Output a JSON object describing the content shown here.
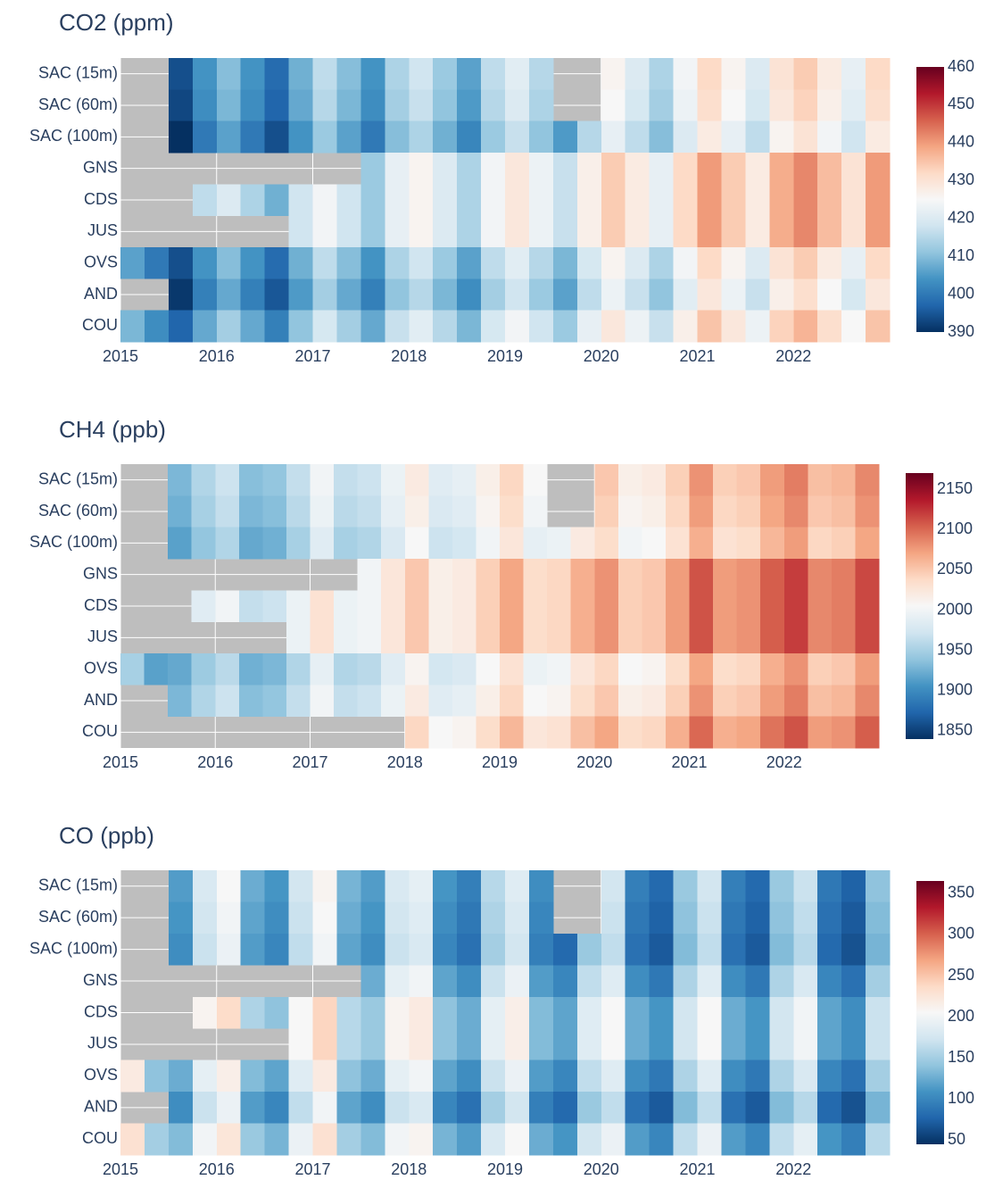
{
  "chart_data": [
    {
      "type": "heatmap",
      "title": "CO2 (ppm)",
      "y": [
        "SAC (15m)",
        "SAC (60m)",
        "SAC (100m)",
        "GNS",
        "CDS",
        "JUS",
        "OVS",
        "AND",
        "COU"
      ],
      "x": [
        2015,
        2015.25,
        2015.5,
        2015.75,
        2016,
        2016.25,
        2016.5,
        2016.75,
        2017,
        2017.25,
        2017.5,
        2017.75,
        2018,
        2018.25,
        2018.5,
        2018.75,
        2019,
        2019.25,
        2019.5,
        2019.75,
        2020,
        2020.25,
        2020.5,
        2020.75,
        2021,
        2021.25,
        2021.5,
        2021.75,
        2022,
        2022.25,
        2022.5,
        2022.75
      ],
      "xlim": [
        2015,
        2023
      ],
      "xticks": [
        2015,
        2016,
        2017,
        2018,
        2019,
        2020,
        2021,
        2022
      ],
      "zlim": [
        390,
        460
      ],
      "colorbar_ticks": [
        390,
        400,
        410,
        420,
        430,
        440,
        450,
        460
      ],
      "colorscale": [
        "#053061",
        "#2166ac",
        "#4393c3",
        "#92c5de",
        "#d1e5f0",
        "#f7f7f7",
        "#fddbc7",
        "#f4a582",
        "#d6604d",
        "#b2182b",
        "#67001f"
      ],
      "missing_color": "#bebebe",
      "grid": true,
      "z": [
        [
          null,
          null,
          394,
          404,
          410,
          404,
          398,
          408,
          416,
          410,
          404,
          414,
          418,
          412,
          406,
          416,
          421,
          415,
          null,
          null,
          426,
          420,
          414,
          424,
          432,
          426,
          420,
          430,
          434,
          428,
          422,
          432
        ],
        [
          null,
          null,
          393,
          403,
          409,
          403,
          397,
          407,
          415,
          409,
          403,
          413,
          417,
          411,
          405,
          415,
          420,
          414,
          null,
          null,
          425,
          419,
          413,
          423,
          431,
          425,
          419,
          429,
          433,
          427,
          421,
          431
        ],
        [
          null,
          null,
          390,
          400,
          406,
          400,
          394,
          404,
          412,
          406,
          400,
          410,
          414,
          408,
          402,
          412,
          417,
          411,
          405,
          415,
          422,
          416,
          410,
          420,
          428,
          422,
          416,
          426,
          430,
          424,
          418,
          428
        ],
        [
          null,
          null,
          null,
          null,
          null,
          null,
          null,
          null,
          null,
          null,
          412,
          422,
          426,
          420,
          414,
          424,
          429,
          423,
          417,
          427,
          434,
          428,
          422,
          432,
          440,
          434,
          428,
          438,
          442,
          436,
          430,
          440
        ],
        [
          null,
          null,
          null,
          416,
          420,
          414,
          408,
          418,
          424,
          418,
          412,
          422,
          426,
          420,
          414,
          424,
          429,
          423,
          417,
          427,
          434,
          428,
          422,
          432,
          440,
          434,
          428,
          438,
          442,
          436,
          430,
          440
        ],
        [
          null,
          null,
          null,
          null,
          null,
          null,
          null,
          418,
          424,
          418,
          412,
          422,
          426,
          420,
          414,
          424,
          429,
          423,
          417,
          427,
          434,
          428,
          422,
          432,
          440,
          434,
          428,
          438,
          442,
          436,
          430,
          440
        ],
        [
          406,
          400,
          394,
          404,
          410,
          404,
          398,
          408,
          416,
          410,
          404,
          414,
          418,
          412,
          406,
          416,
          421,
          415,
          409,
          419,
          426,
          420,
          414,
          424,
          432,
          426,
          420,
          430,
          434,
          428,
          422,
          432
        ],
        [
          null,
          null,
          391,
          401,
          407,
          401,
          395,
          405,
          413,
          407,
          401,
          411,
          415,
          409,
          403,
          413,
          418,
          412,
          406,
          416,
          423,
          417,
          411,
          421,
          429,
          423,
          417,
          427,
          431,
          425,
          419,
          429
        ],
        [
          409,
          403,
          397,
          407,
          413,
          407,
          401,
          411,
          419,
          413,
          407,
          417,
          421,
          415,
          409,
          419,
          424,
          418,
          412,
          422,
          429,
          423,
          417,
          427,
          435,
          429,
          423,
          433,
          437,
          431,
          425,
          435
        ]
      ]
    },
    {
      "type": "heatmap",
      "title": "CH4 (ppb)",
      "y": [
        "SAC (15m)",
        "SAC (60m)",
        "SAC (100m)",
        "GNS",
        "CDS",
        "JUS",
        "OVS",
        "AND",
        "COU"
      ],
      "x": [
        2015,
        2015.25,
        2015.5,
        2015.75,
        2016,
        2016.25,
        2016.5,
        2016.75,
        2017,
        2017.25,
        2017.5,
        2017.75,
        2018,
        2018.25,
        2018.5,
        2018.75,
        2019,
        2019.25,
        2019.5,
        2019.75,
        2020,
        2020.25,
        2020.5,
        2020.75,
        2021,
        2021.25,
        2021.5,
        2021.75,
        2022,
        2022.25,
        2022.5,
        2022.75
      ],
      "xlim": [
        2015,
        2023
      ],
      "xticks": [
        2015,
        2016,
        2017,
        2018,
        2019,
        2020,
        2021,
        2022
      ],
      "zlim": [
        1840,
        2170
      ],
      "colorbar_ticks": [
        1850,
        1900,
        1950,
        2000,
        2050,
        2100,
        2150
      ],
      "colorscale": [
        "#053061",
        "#2166ac",
        "#4393c3",
        "#92c5de",
        "#d1e5f0",
        "#f7f7f7",
        "#fddbc7",
        "#f4a582",
        "#d6604d",
        "#b2182b",
        "#67001f"
      ],
      "missing_color": "#bebebe",
      "grid": true,
      "z": [
        [
          null,
          null,
          1930,
          1955,
          1970,
          1935,
          1940,
          1965,
          2000,
          1965,
          1970,
          1995,
          2020,
          1985,
          1990,
          2015,
          2040,
          2005,
          null,
          null,
          2050,
          2015,
          2020,
          2045,
          2080,
          2045,
          2050,
          2075,
          2090,
          2055,
          2060,
          2085
        ],
        [
          null,
          null,
          1925,
          1950,
          1965,
          1930,
          1935,
          1960,
          1995,
          1960,
          1965,
          1990,
          2015,
          1980,
          1985,
          2010,
          2035,
          2000,
          null,
          null,
          2045,
          2010,
          2015,
          2040,
          2075,
          2040,
          2045,
          2070,
          2085,
          2050,
          2055,
          2080
        ],
        [
          null,
          null,
          1915,
          1940,
          1955,
          1920,
          1925,
          1950,
          1985,
          1950,
          1955,
          1980,
          2005,
          1970,
          1975,
          2000,
          2025,
          1990,
          1995,
          2020,
          2035,
          2000,
          2005,
          2030,
          2065,
          2030,
          2035,
          2060,
          2075,
          2040,
          2045,
          2070
        ],
        [
          null,
          null,
          null,
          null,
          null,
          null,
          null,
          null,
          null,
          null,
          2000,
          2025,
          2050,
          2015,
          2020,
          2045,
          2070,
          2035,
          2040,
          2065,
          2080,
          2045,
          2050,
          2075,
          2110,
          2075,
          2080,
          2105,
          2120,
          2085,
          2090,
          2115
        ],
        [
          null,
          null,
          null,
          1985,
          2000,
          1965,
          1970,
          1995,
          2030,
          1995,
          2000,
          2025,
          2050,
          2015,
          2020,
          2045,
          2070,
          2035,
          2040,
          2065,
          2080,
          2045,
          2050,
          2075,
          2110,
          2075,
          2080,
          2105,
          2120,
          2085,
          2090,
          2115
        ],
        [
          null,
          null,
          null,
          null,
          null,
          null,
          null,
          1995,
          2030,
          1995,
          2000,
          2025,
          2050,
          2015,
          2020,
          2045,
          2070,
          2035,
          2040,
          2065,
          2080,
          2045,
          2050,
          2075,
          2110,
          2075,
          2080,
          2105,
          2120,
          2085,
          2090,
          2115
        ],
        [
          1950,
          1915,
          1920,
          1945,
          1960,
          1925,
          1930,
          1955,
          1990,
          1955,
          1960,
          1985,
          2010,
          1975,
          1980,
          2005,
          2030,
          1995,
          2000,
          2025,
          2040,
          2005,
          2010,
          2035,
          2070,
          2035,
          2040,
          2065,
          2080,
          2045,
          2050,
          2075
        ],
        [
          null,
          null,
          1930,
          1955,
          1970,
          1935,
          1940,
          1965,
          2000,
          1965,
          1970,
          1995,
          2020,
          1985,
          1990,
          2015,
          2040,
          2005,
          2010,
          2035,
          2050,
          2015,
          2020,
          2045,
          2080,
          2045,
          2050,
          2075,
          2090,
          2055,
          2060,
          2085
        ],
        [
          null,
          null,
          null,
          null,
          null,
          null,
          null,
          null,
          null,
          null,
          null,
          null,
          2040,
          2005,
          2010,
          2035,
          2060,
          2025,
          2030,
          2055,
          2070,
          2035,
          2040,
          2065,
          2100,
          2065,
          2070,
          2095,
          2110,
          2075,
          2080,
          2105
        ]
      ]
    },
    {
      "type": "heatmap",
      "title": "CO (ppb)",
      "y": [
        "SAC (15m)",
        "SAC (60m)",
        "SAC (100m)",
        "GNS",
        "CDS",
        "JUS",
        "OVS",
        "AND",
        "COU"
      ],
      "x": [
        2015,
        2015.25,
        2015.5,
        2015.75,
        2016,
        2016.25,
        2016.5,
        2016.75,
        2017,
        2017.25,
        2017.5,
        2017.75,
        2018,
        2018.25,
        2018.5,
        2018.75,
        2019,
        2019.25,
        2019.5,
        2019.75,
        2020,
        2020.25,
        2020.5,
        2020.75,
        2021,
        2021.25,
        2021.5,
        2021.75,
        2022,
        2022.25,
        2022.5,
        2022.75
      ],
      "xlim": [
        2015,
        2023
      ],
      "xticks": [
        2015,
        2016,
        2017,
        2018,
        2019,
        2020,
        2021,
        2022
      ],
      "zlim": [
        45,
        365
      ],
      "colorbar_ticks": [
        50,
        100,
        150,
        200,
        250,
        300,
        350
      ],
      "colorscale": [
        "#053061",
        "#2166ac",
        "#4393c3",
        "#92c5de",
        "#d1e5f0",
        "#f7f7f7",
        "#fddbc7",
        "#f4a582",
        "#d6604d",
        "#b2182b",
        "#67001f"
      ],
      "missing_color": "#bebebe",
      "grid": true,
      "z": [
        [
          null,
          null,
          115,
          180,
          205,
          125,
          110,
          175,
          210,
          130,
          115,
          180,
          190,
          110,
          95,
          160,
          185,
          105,
          null,
          null,
          175,
          95,
          80,
          145,
          175,
          95,
          80,
          145,
          170,
          90,
          75,
          140
        ],
        [
          null,
          null,
          110,
          175,
          200,
          120,
          105,
          170,
          205,
          125,
          110,
          175,
          185,
          105,
          90,
          155,
          180,
          100,
          null,
          null,
          170,
          90,
          75,
          140,
          170,
          90,
          75,
          140,
          165,
          85,
          70,
          135
        ],
        [
          null,
          null,
          105,
          170,
          195,
          115,
          100,
          165,
          200,
          120,
          105,
          170,
          180,
          100,
          85,
          150,
          175,
          95,
          80,
          145,
          165,
          85,
          70,
          135,
          165,
          85,
          70,
          135,
          160,
          80,
          65,
          130
        ],
        [
          null,
          null,
          null,
          null,
          null,
          null,
          null,
          null,
          null,
          null,
          125,
          190,
          200,
          120,
          105,
          170,
          195,
          115,
          100,
          165,
          185,
          105,
          90,
          155,
          185,
          105,
          90,
          155,
          180,
          100,
          85,
          150
        ],
        [
          null,
          null,
          null,
          210,
          235,
          155,
          140,
          205,
          240,
          160,
          145,
          210,
          220,
          140,
          125,
          190,
          215,
          135,
          120,
          185,
          205,
          125,
          110,
          175,
          205,
          125,
          110,
          175,
          200,
          120,
          105,
          170
        ],
        [
          null,
          null,
          null,
          null,
          null,
          null,
          null,
          205,
          240,
          160,
          145,
          210,
          220,
          140,
          125,
          190,
          215,
          135,
          120,
          185,
          205,
          125,
          110,
          175,
          205,
          125,
          110,
          175,
          200,
          120,
          105,
          170
        ],
        [
          220,
          140,
          125,
          190,
          215,
          135,
          120,
          185,
          220,
          140,
          125,
          190,
          200,
          120,
          105,
          170,
          195,
          115,
          100,
          165,
          185,
          105,
          90,
          155,
          185,
          105,
          90,
          155,
          180,
          100,
          85,
          150
        ],
        [
          null,
          null,
          105,
          170,
          195,
          115,
          100,
          165,
          200,
          120,
          105,
          170,
          180,
          100,
          85,
          150,
          175,
          95,
          80,
          145,
          165,
          85,
          70,
          135,
          165,
          85,
          70,
          135,
          160,
          80,
          65,
          130
        ],
        [
          230,
          150,
          135,
          200,
          225,
          145,
          130,
          195,
          230,
          150,
          135,
          200,
          210,
          130,
          115,
          180,
          205,
          125,
          110,
          175,
          195,
          115,
          100,
          165,
          195,
          115,
          100,
          165,
          190,
          110,
          95,
          160
        ]
      ]
    }
  ]
}
